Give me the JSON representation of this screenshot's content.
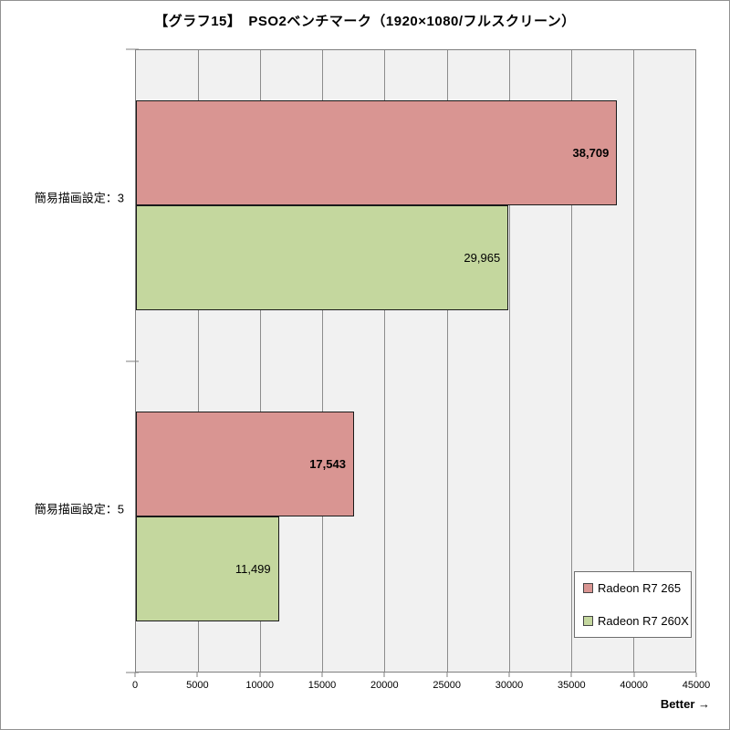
{
  "chart_data": {
    "type": "bar",
    "orientation": "horizontal",
    "title": "【グラフ15】　PSO2ベンチマーク（1920×1080/フルスクリーン）",
    "categories": [
      "簡易描画設定：3",
      "簡易描画設定：5"
    ],
    "series": [
      {
        "name": "Radeon R7 265",
        "color": "#d99592",
        "border_color": "#1a1a1a",
        "values": [
          38709,
          17543
        ],
        "value_labels": [
          "38,709",
          "17,543"
        ],
        "label_bold": true
      },
      {
        "name": "Radeon R7 260X",
        "color": "#c4d79e",
        "border_color": "#1a1a1a",
        "values": [
          29965,
          11499
        ],
        "value_labels": [
          "29,965",
          "11,499"
        ],
        "label_bold": false
      }
    ],
    "xlim": [
      0,
      45000
    ],
    "xticks": [
      0,
      5000,
      10000,
      15000,
      20000,
      25000,
      30000,
      35000,
      40000,
      45000
    ],
    "grid": true,
    "legend_position": "bottom-right",
    "annotation": "Better →",
    "plot_bg": "#f1f1f1",
    "gridline_color": "#8c8c8c",
    "axis_color": "#7f7f7f"
  }
}
